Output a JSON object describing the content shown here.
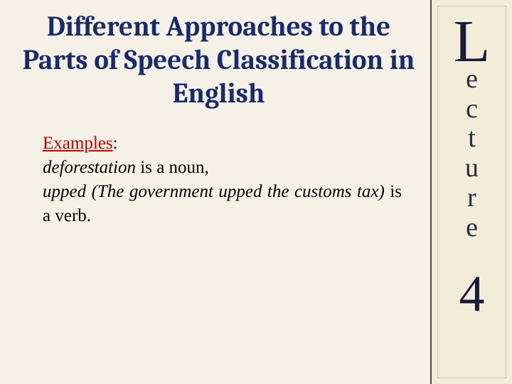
{
  "title": "Different Approaches to the Parts of Speech Classification in English",
  "examples_label": "Examples",
  "body": {
    "line1_italic": "deforestation",
    "line1_rest": " is a noun,",
    "line2_italic": "upped (The government upped the customs tax)",
    "line2_rest": " is a verb."
  },
  "sidebar": {
    "letters": [
      "L",
      "e",
      "c",
      "t",
      "u",
      "r",
      "e"
    ],
    "number": "4"
  },
  "colors": {
    "background": "#f5f1e6",
    "title": "#1a2b6d",
    "examples": "#c00000",
    "sidebar_bg": "#f2ecd9",
    "sidebar_border": "#4a4a3a",
    "script_text": "#2a2a4a"
  }
}
